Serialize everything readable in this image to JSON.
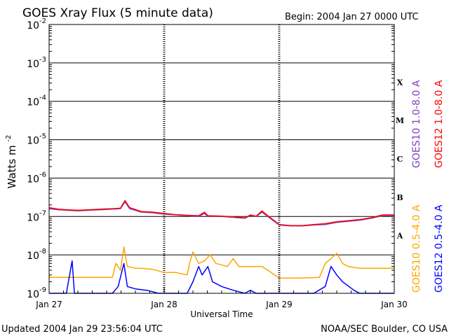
{
  "chart_data": {
    "type": "line",
    "title": "GOES Xray Flux (5 minute data)",
    "begin_label": "Begin:  2004 Jan 27 0000 UTC",
    "ylabel_main": "Watts m",
    "ylabel_exp": "-2",
    "xlabel": "Universal Time",
    "y_scale": "log",
    "ylim": [
      1e-09,
      0.01
    ],
    "y_ticks": [
      {
        "base": "10",
        "exp": "-9",
        "value": 1e-09
      },
      {
        "base": "10",
        "exp": "-8",
        "value": 1e-08
      },
      {
        "base": "10",
        "exp": "-7",
        "value": 1e-07
      },
      {
        "base": "10",
        "exp": "-6",
        "value": 1e-06
      },
      {
        "base": "10",
        "exp": "-5",
        "value": 1e-05
      },
      {
        "base": "10",
        "exp": "-4",
        "value": 0.0001
      },
      {
        "base": "10",
        "exp": "-3",
        "value": 0.001
      },
      {
        "base": "10",
        "exp": "-2",
        "value": 0.01
      }
    ],
    "x_unit": "days since 2004 Jan 27 0000 UTC",
    "xlim": [
      0,
      3
    ],
    "x_ticks": [
      {
        "label": "Jan 27",
        "value": 0
      },
      {
        "label": "Jan 28",
        "value": 1
      },
      {
        "label": "Jan 29",
        "value": 2
      },
      {
        "label": "Jan 30",
        "value": 3
      }
    ],
    "flare_classes": [
      {
        "label": "X",
        "value": 0.000316
      },
      {
        "label": "M",
        "value": 3.16e-05
      },
      {
        "label": "C",
        "value": 3.16e-06
      },
      {
        "label": "B",
        "value": 3.16e-07
      },
      {
        "label": "A",
        "value": 3.16e-08
      }
    ],
    "grid": "horizontal lines at each decade",
    "legend_placement": "right, vertical text",
    "series": [
      {
        "name": "GOES10 1.0-8.0 A",
        "color": "#7f3fbf",
        "points": [
          [
            0,
            1.6e-07
          ],
          [
            0.08,
            1.5e-07
          ],
          [
            0.15,
            1.45e-07
          ],
          [
            0.25,
            1.4e-07
          ],
          [
            0.35,
            1.45e-07
          ],
          [
            0.45,
            1.5e-07
          ],
          [
            0.55,
            1.55e-07
          ],
          [
            0.62,
            1.6e-07
          ],
          [
            0.66,
            2.4e-07
          ],
          [
            0.7,
            1.6e-07
          ],
          [
            0.8,
            1.3e-07
          ],
          [
            0.9,
            1.25e-07
          ],
          [
            1.0,
            1.15e-07
          ],
          [
            1.1,
            1.1e-07
          ],
          [
            1.2,
            1.05e-07
          ],
          [
            1.3,
            1e-07
          ],
          [
            1.35,
            1.2e-07
          ],
          [
            1.38,
            1e-07
          ],
          [
            1.5,
            1e-07
          ],
          [
            1.6,
            9.5e-08
          ],
          [
            1.7,
            9e-08
          ],
          [
            1.75,
            1.05e-07
          ],
          [
            1.8,
            1e-07
          ],
          [
            1.85,
            1.3e-07
          ],
          [
            1.9,
            1e-07
          ],
          [
            2.0,
            6e-08
          ],
          [
            2.1,
            5.7e-08
          ],
          [
            2.2,
            5.7e-08
          ],
          [
            2.3,
            6e-08
          ],
          [
            2.4,
            6.2e-08
          ],
          [
            2.5,
            7e-08
          ],
          [
            2.6,
            7.5e-08
          ],
          [
            2.7,
            8e-08
          ],
          [
            2.8,
            9e-08
          ],
          [
            2.9,
            1.05e-07
          ],
          [
            3.0,
            1.05e-07
          ]
        ]
      },
      {
        "name": "GOES12 1.0-8.0 A",
        "color": "#ff0000",
        "points": [
          [
            0,
            1.7e-07
          ],
          [
            0.08,
            1.55e-07
          ],
          [
            0.15,
            1.5e-07
          ],
          [
            0.25,
            1.45e-07
          ],
          [
            0.35,
            1.5e-07
          ],
          [
            0.45,
            1.55e-07
          ],
          [
            0.55,
            1.6e-07
          ],
          [
            0.62,
            1.65e-07
          ],
          [
            0.66,
            2.6e-07
          ],
          [
            0.7,
            1.7e-07
          ],
          [
            0.8,
            1.35e-07
          ],
          [
            0.9,
            1.3e-07
          ],
          [
            1.0,
            1.2e-07
          ],
          [
            1.1,
            1.12e-07
          ],
          [
            1.2,
            1.08e-07
          ],
          [
            1.3,
            1.05e-07
          ],
          [
            1.35,
            1.3e-07
          ],
          [
            1.38,
            1.05e-07
          ],
          [
            1.5,
            1.02e-07
          ],
          [
            1.6,
            9.8e-08
          ],
          [
            1.7,
            9.2e-08
          ],
          [
            1.75,
            1.1e-07
          ],
          [
            1.8,
            1.02e-07
          ],
          [
            1.85,
            1.4e-07
          ],
          [
            1.9,
            1.05e-07
          ],
          [
            2.0,
            6.2e-08
          ],
          [
            2.1,
            5.8e-08
          ],
          [
            2.2,
            5.8e-08
          ],
          [
            2.3,
            6.2e-08
          ],
          [
            2.4,
            6.5e-08
          ],
          [
            2.5,
            7.3e-08
          ],
          [
            2.6,
            7.8e-08
          ],
          [
            2.7,
            8.3e-08
          ],
          [
            2.8,
            9.3e-08
          ],
          [
            2.9,
            1.1e-07
          ],
          [
            3.0,
            1.1e-07
          ]
        ]
      },
      {
        "name": "GOES10 0.5-4.0 A",
        "color": "#ffa500",
        "points": [
          [
            0,
            2.6e-09
          ],
          [
            0.1,
            2.6e-09
          ],
          [
            0.3,
            2.6e-09
          ],
          [
            0.55,
            2.6e-09
          ],
          [
            0.58,
            6e-09
          ],
          [
            0.62,
            4e-09
          ],
          [
            0.65,
            1.6e-08
          ],
          [
            0.68,
            5e-09
          ],
          [
            0.75,
            4.5e-09
          ],
          [
            0.8,
            4.5e-09
          ],
          [
            0.9,
            4.2e-09
          ],
          [
            1.0,
            3.5e-09
          ],
          [
            1.1,
            3.5e-09
          ],
          [
            1.2,
            3e-09
          ],
          [
            1.22,
            6e-09
          ],
          [
            1.25,
            1.2e-08
          ],
          [
            1.3,
            6e-09
          ],
          [
            1.35,
            7e-09
          ],
          [
            1.4,
            1e-08
          ],
          [
            1.45,
            6e-09
          ],
          [
            1.55,
            5e-09
          ],
          [
            1.6,
            8e-09
          ],
          [
            1.65,
            5e-09
          ],
          [
            1.75,
            5e-09
          ],
          [
            1.85,
            5e-09
          ],
          [
            1.9,
            4e-09
          ],
          [
            2.0,
            2.5e-09
          ],
          [
            2.1,
            2.5e-09
          ],
          [
            2.2,
            2.5e-09
          ],
          [
            2.35,
            2.6e-09
          ],
          [
            2.4,
            6e-09
          ],
          [
            2.45,
            8e-09
          ],
          [
            2.5,
            1.1e-08
          ],
          [
            2.55,
            6e-09
          ],
          [
            2.6,
            5e-09
          ],
          [
            2.7,
            4.5e-09
          ],
          [
            2.8,
            4.5e-09
          ],
          [
            2.9,
            4.5e-09
          ],
          [
            3.0,
            4.5e-09
          ]
        ]
      },
      {
        "name": "GOES12 0.5-4.0 A",
        "color": "#0000ff",
        "points": [
          [
            0,
            1e-09
          ],
          [
            0.15,
            1e-09
          ],
          [
            0.2,
            7e-09
          ],
          [
            0.22,
            1e-09
          ],
          [
            0.3,
            1e-09
          ],
          [
            0.55,
            1e-09
          ],
          [
            0.6,
            1.5e-09
          ],
          [
            0.65,
            6e-09
          ],
          [
            0.68,
            1.5e-09
          ],
          [
            0.75,
            1.3e-09
          ],
          [
            0.85,
            1.2e-09
          ],
          [
            0.95,
            1e-09
          ],
          [
            1.2,
            1e-09
          ],
          [
            1.25,
            2e-09
          ],
          [
            1.3,
            5e-09
          ],
          [
            1.33,
            3e-09
          ],
          [
            1.38,
            5e-09
          ],
          [
            1.42,
            2e-09
          ],
          [
            1.5,
            1.5e-09
          ],
          [
            1.6,
            1.2e-09
          ],
          [
            1.7,
            1e-09
          ],
          [
            1.75,
            1.2e-09
          ],
          [
            1.8,
            1e-09
          ],
          [
            2.0,
            1e-09
          ],
          [
            2.3,
            1e-09
          ],
          [
            2.4,
            1.5e-09
          ],
          [
            2.45,
            5e-09
          ],
          [
            2.5,
            3e-09
          ],
          [
            2.55,
            2e-09
          ],
          [
            2.65,
            1.2e-09
          ],
          [
            2.7,
            1e-09
          ],
          [
            2.8,
            1e-09
          ],
          [
            3.0,
            1e-09
          ]
        ]
      }
    ]
  },
  "footer": {
    "updated": "Updated 2004 Jan 29 23:56:04 UTC",
    "credit": "NOAA/SEC Boulder, CO USA"
  }
}
